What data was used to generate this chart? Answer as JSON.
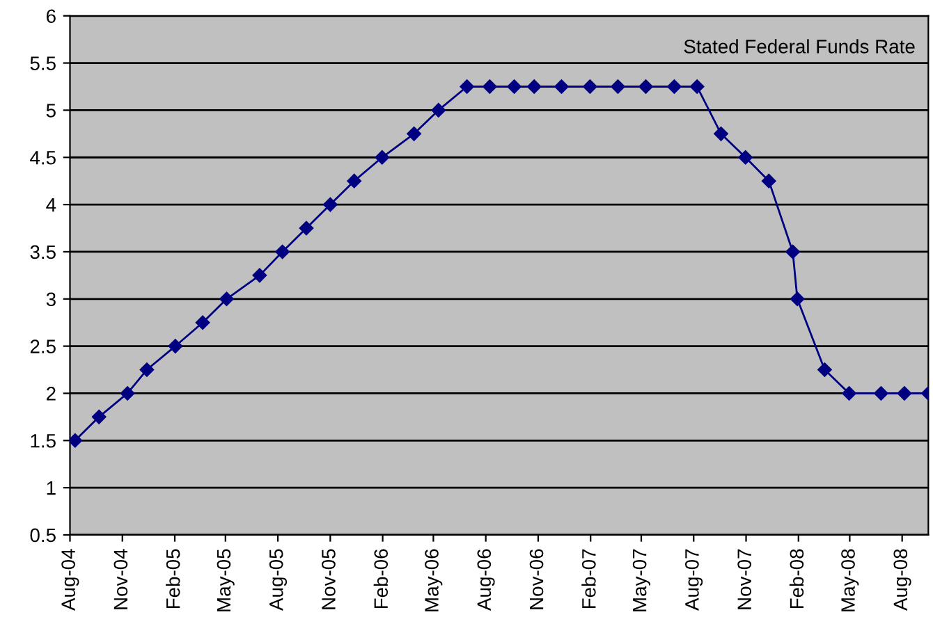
{
  "chart_data": {
    "type": "line",
    "title": "Stated Federal Funds Rate",
    "x": [
      "2004-08-10",
      "2004-09-21",
      "2004-11-10",
      "2004-12-14",
      "2005-02-02",
      "2005-03-22",
      "2005-05-03",
      "2005-06-30",
      "2005-08-09",
      "2005-09-20",
      "2005-11-01",
      "2005-12-13",
      "2006-01-31",
      "2006-03-28",
      "2006-05-10",
      "2006-06-29",
      "2006-08-08",
      "2006-09-20",
      "2006-10-25",
      "2006-12-12",
      "2007-01-31",
      "2007-03-21",
      "2007-05-09",
      "2007-06-28",
      "2007-08-07",
      "2007-09-18",
      "2007-10-31",
      "2007-12-11",
      "2008-01-22",
      "2008-01-30",
      "2008-03-18",
      "2008-04-30",
      "2008-06-25",
      "2008-08-05",
      "2008-09-16"
    ],
    "series": [
      {
        "color": "#000080",
        "values": [
          1.5,
          1.75,
          2.0,
          2.25,
          2.5,
          2.75,
          3.0,
          3.25,
          3.5,
          3.75,
          4.0,
          4.25,
          4.5,
          4.75,
          5.0,
          5.25,
          5.25,
          5.25,
          5.25,
          5.25,
          5.25,
          5.25,
          5.25,
          5.25,
          5.25,
          4.75,
          4.5,
          4.25,
          3.5,
          3.0,
          2.25,
          2.0,
          2.0,
          2.0,
          2.0
        ]
      }
    ],
    "xlim": [
      "2004-08-01",
      "2008-09-16"
    ],
    "xticks": [
      {
        "value": "2004-08-01",
        "label": "Aug-04"
      },
      {
        "value": "2004-11-01",
        "label": "Nov-04"
      },
      {
        "value": "2005-02-01",
        "label": "Feb-05"
      },
      {
        "value": "2005-05-01",
        "label": "May-05"
      },
      {
        "value": "2005-08-01",
        "label": "Aug-05"
      },
      {
        "value": "2005-11-01",
        "label": "Nov-05"
      },
      {
        "value": "2006-02-01",
        "label": "Feb-06"
      },
      {
        "value": "2006-05-01",
        "label": "May-06"
      },
      {
        "value": "2006-08-01",
        "label": "Aug-06"
      },
      {
        "value": "2006-11-01",
        "label": "Nov-06"
      },
      {
        "value": "2007-02-01",
        "label": "Feb-07"
      },
      {
        "value": "2007-05-01",
        "label": "May-07"
      },
      {
        "value": "2007-08-01",
        "label": "Aug-07"
      },
      {
        "value": "2007-11-01",
        "label": "Nov-07"
      },
      {
        "value": "2008-02-01",
        "label": "Feb-08"
      },
      {
        "value": "2008-05-01",
        "label": "May-08"
      },
      {
        "value": "2008-08-01",
        "label": "Aug-08"
      }
    ],
    "ylim": [
      0.5,
      6
    ],
    "yticks": [
      0.5,
      1,
      1.5,
      2,
      2.5,
      3,
      3.5,
      4,
      4.5,
      5,
      5.5,
      6
    ],
    "grid": "y",
    "marker": "diamond",
    "line_style": "solid"
  }
}
